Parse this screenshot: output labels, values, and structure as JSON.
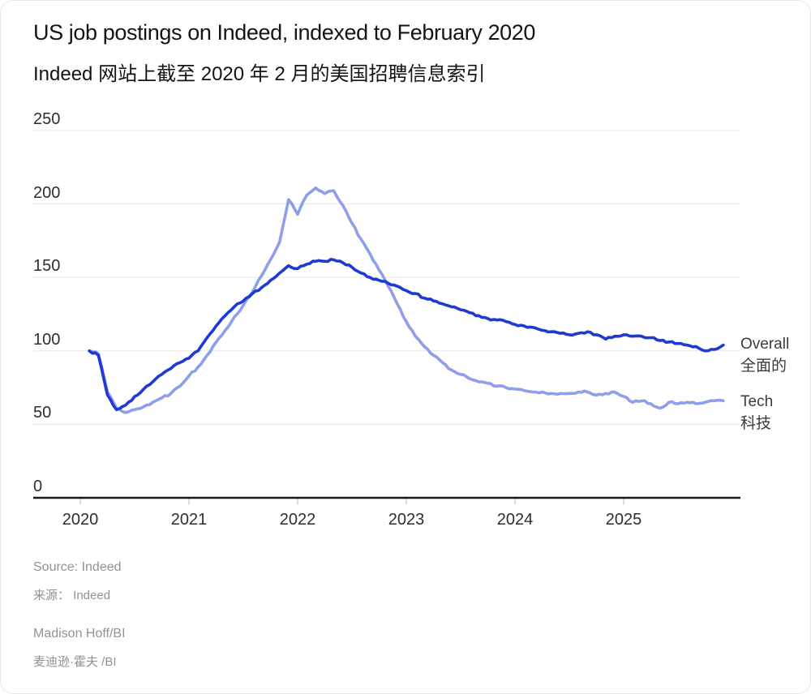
{
  "title": {
    "en": "US job postings on Indeed, indexed to February 2020",
    "zh": "Indeed 网站上截至 2020 年 2 月的美国招聘信息索引"
  },
  "chart_data": {
    "type": "line",
    "title": "US job postings on Indeed, indexed to February 2020",
    "x_start": "2020-02",
    "x_frequency": "monthly",
    "x_tick_labels": [
      "2020",
      "2021",
      "2022",
      "2023",
      "2024",
      "2025"
    ],
    "y_ticks": [
      0,
      50,
      100,
      150,
      200,
      250
    ],
    "ylim": [
      0,
      250
    ],
    "grid": true,
    "legend_position": "right-of-line-ends",
    "axis_color": "#1a1a1a",
    "grid_color": "#e8e8e8",
    "tick_color": "#cfcfcf",
    "series": [
      {
        "name": "Overall",
        "name_zh": "全面的",
        "color": "#1e3ad2",
        "values": [
          100,
          97,
          70,
          60,
          63,
          69,
          74,
          79,
          84,
          88,
          92,
          95,
          100,
          109,
          117,
          124,
          130,
          134,
          139,
          143,
          148,
          153,
          158,
          156,
          159,
          161,
          161,
          162,
          160,
          157,
          153,
          150,
          148,
          146,
          144,
          141,
          139,
          136,
          134,
          132,
          130,
          128,
          126,
          124,
          122,
          121,
          120,
          118,
          117,
          116,
          114,
          113,
          112,
          111,
          112,
          113,
          111,
          108,
          110,
          111,
          110,
          110,
          109,
          107,
          106,
          105,
          104,
          103,
          100,
          101,
          104
        ]
      },
      {
        "name": "Tech",
        "name_zh": "科技",
        "color": "#8f9ee9",
        "values": [
          100,
          98,
          72,
          61,
          58,
          60,
          62,
          65,
          68,
          71,
          76,
          83,
          89,
          97,
          106,
          114,
          123,
          131,
          140,
          151,
          162,
          174,
          203,
          193,
          206,
          211,
          207,
          209,
          199,
          187,
          176,
          166,
          155,
          144,
          132,
          120,
          110,
          103,
          97,
          92,
          87,
          84,
          81,
          79,
          78,
          76,
          75,
          74,
          73,
          72,
          72,
          71,
          71,
          71,
          72,
          72,
          70,
          71,
          72,
          69,
          65,
          66,
          64,
          61,
          65,
          64,
          65,
          64,
          65,
          66,
          66
        ]
      }
    ]
  },
  "source": {
    "source_en": "Source: Indeed",
    "source_zh": "来源： Indeed",
    "byline_en": "Madison Hoff/BI",
    "byline_zh": "麦迪逊·霍夫 /BI"
  }
}
